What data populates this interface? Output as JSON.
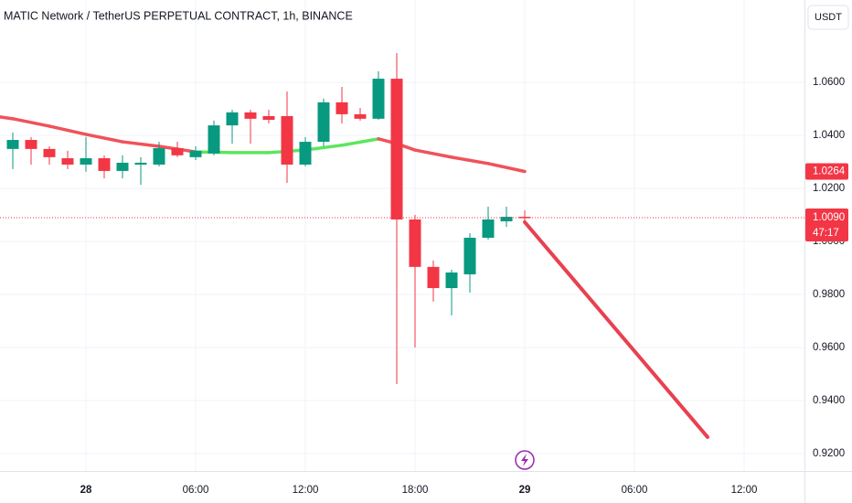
{
  "chart_data": {
    "type": "candlestick",
    "title": "MATIC Network / TetherUS PERPETUAL CONTRACT, 1h, BINANCE",
    "currency_button": "USDT",
    "up_color": "#089981",
    "down_color": "#f23645",
    "grid": true,
    "xlim": [
      -4.7,
      39.3
    ],
    "ylim": [
      0.9134,
      1.0911
    ],
    "xticks": [
      {
        "value": 0,
        "label": "28"
      },
      {
        "value": 6,
        "label": "06:00"
      },
      {
        "value": 12,
        "label": "12:00"
      },
      {
        "value": 18,
        "label": "18:00"
      },
      {
        "value": 24,
        "label": "29"
      },
      {
        "value": 30,
        "label": "06:00"
      },
      {
        "value": 36,
        "label": "12:00"
      }
    ],
    "yticks": [
      {
        "value": 1.06,
        "label": "1.0600"
      },
      {
        "value": 1.04,
        "label": "1.0400"
      },
      {
        "value": 1.02,
        "label": "1.0200"
      },
      {
        "value": 1.0,
        "label": "1.0000"
      },
      {
        "value": 0.98,
        "label": "0.9800"
      },
      {
        "value": 0.96,
        "label": "0.9600"
      },
      {
        "value": 0.94,
        "label": "0.9400"
      },
      {
        "value": 0.92,
        "label": "0.9200"
      }
    ],
    "candles": {
      "x": [
        -4,
        -3,
        -2,
        -1,
        0,
        1,
        2,
        3,
        4,
        5,
        6,
        7,
        8,
        9,
        10,
        11,
        12,
        13,
        14,
        15,
        16,
        17,
        18,
        19,
        20,
        21,
        22,
        23,
        24
      ],
      "open": [
        1.0349,
        1.0383,
        1.0349,
        1.0314,
        1.029,
        1.0314,
        1.0266,
        1.029,
        1.029,
        1.0352,
        1.0318,
        1.0332,
        1.0438,
        1.0487,
        1.0473,
        1.0473,
        1.029,
        1.0376,
        1.0525,
        1.048,
        1.0463,
        1.0614,
        1.0083,
        0.9904,
        0.9824,
        0.9876,
        1.0014,
        1.0076,
        1.0093
      ],
      "high": [
        1.0411,
        1.0394,
        1.0359,
        1.0342,
        1.0394,
        1.0325,
        1.0325,
        1.0318,
        1.0376,
        1.0376,
        1.0359,
        1.0456,
        1.0497,
        1.0497,
        1.0497,
        1.0566,
        1.0394,
        1.0539,
        1.0583,
        1.0504,
        1.0642,
        1.0711,
        1.01,
        0.9928,
        0.9893,
        1.0031,
        1.0131,
        1.0131,
        1.0118
      ],
      "low": [
        1.0273,
        1.029,
        1.029,
        1.0273,
        1.0263,
        1.0238,
        1.0238,
        1.0214,
        1.0283,
        1.0318,
        1.0307,
        1.0325,
        1.0369,
        1.0369,
        1.0445,
        1.0221,
        1.0283,
        1.0359,
        1.0445,
        1.0456,
        1.0459,
        0.9462,
        0.96,
        0.9773,
        0.9721,
        0.9807,
        1.0007,
        1.0055,
        1.0066
      ],
      "close": [
        1.0383,
        1.0349,
        1.0318,
        1.029,
        1.0314,
        1.0266,
        1.0297,
        1.0297,
        1.0352,
        1.0325,
        1.0342,
        1.0438,
        1.0487,
        1.0463,
        1.0459,
        1.029,
        1.0376,
        1.0525,
        1.048,
        1.0463,
        1.0614,
        1.0083,
        0.9904,
        0.9824,
        0.9883,
        1.0014,
        1.0083,
        1.0093,
        1.009
      ]
    },
    "moving_average": {
      "x": [
        -4.7,
        -4,
        -2,
        0,
        2,
        4,
        6,
        8,
        10,
        12,
        14,
        16,
        17,
        18,
        20,
        22,
        24
      ],
      "values": [
        1.047,
        1.0463,
        1.0435,
        1.0404,
        1.0376,
        1.0359,
        1.0338,
        1.0335,
        1.0335,
        1.0345,
        1.0363,
        1.0387,
        1.0369,
        1.0345,
        1.0318,
        1.0294,
        1.0264
      ],
      "colors": [
        "#f0525a",
        "#f0525a",
        "#f0525a",
        "#f0525a",
        "#f0525a",
        "#f0525a",
        "#5ce65c",
        "#5ce65c",
        "#5ce65c",
        "#5ce65c",
        "#5ce65c",
        "#f0525a",
        "#f0525a",
        "#f0525a",
        "#f0525a",
        "#f0525a",
        "#f0525a"
      ]
    },
    "projection": {
      "x": [
        24,
        34
      ],
      "values": [
        1.0073,
        0.9262
      ],
      "color": "#e8414f"
    },
    "price_labels": [
      {
        "value": 1.0264,
        "label": "1.0264",
        "color": "#f23645"
      },
      {
        "value": 1.009,
        "label": "1.0090",
        "countdown": "47:17",
        "color": "#f23645"
      }
    ]
  }
}
